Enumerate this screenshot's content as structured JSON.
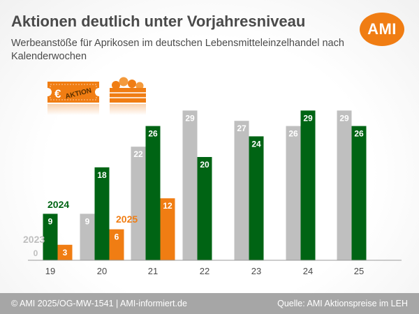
{
  "header": {
    "title": "Aktionen deutlich unter Vorjahresniveau",
    "subtitle": "Werbeanstöße für Aprikosen im deutschen Lebensmitteleinzelhandel nach Kalenderwochen",
    "logo_text": "AMI"
  },
  "icons": {
    "promo_ticket": "euro-aktion-ticket-icon",
    "promo_ticket_text": "AKTION",
    "promo_ticket_symbol": "€",
    "fruit_crate": "apricot-crate-icon"
  },
  "footer": {
    "left": "© AMI 2025/OG-MW-1541 | AMI-informiert.de",
    "right": "Quelle: AMI Aktionspreise im LEH"
  },
  "colors": {
    "series_2023": "#bfbfbf",
    "series_2024": "#006414",
    "series_2025": "#f07d13",
    "text": "#4a4a4a",
    "footer_bg": "#a6a6a6"
  },
  "chart_data": {
    "type": "bar",
    "title": "Aktionen deutlich unter Vorjahresniveau",
    "subtitle": "Werbeanstöße für Aprikosen im deutschen Lebensmitteleinzelhandel nach Kalenderwochen",
    "categories": [
      "19",
      "20",
      "21",
      "22",
      "23",
      "24",
      "25"
    ],
    "series": [
      {
        "name": "2023",
        "values": [
          0,
          9,
          22,
          29,
          27,
          26,
          29
        ]
      },
      {
        "name": "2024",
        "values": [
          9,
          18,
          26,
          20,
          24,
          29,
          26
        ]
      },
      {
        "name": "2025",
        "values": [
          3,
          6,
          12,
          null,
          null,
          null,
          null
        ]
      }
    ],
    "ylim": [
      0,
      30
    ],
    "grid": false,
    "legend": "inline labels at week 19 and 20",
    "data_labels": true
  }
}
